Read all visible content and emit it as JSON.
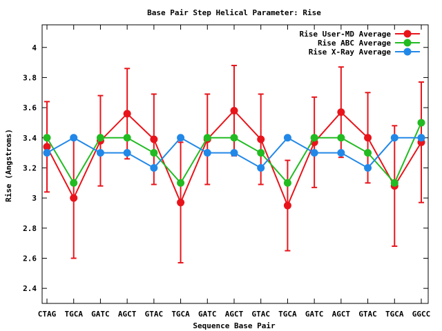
{
  "chart_data": {
    "type": "line",
    "title": "Base Pair Step Helical Parameter: Rise",
    "xlabel": "Sequence Base Pair",
    "ylabel": "Rise (Angstroms)",
    "ylim": [
      2.3,
      4.15
    ],
    "yticks": [
      2.4,
      2.6,
      2.8,
      3,
      3.2,
      3.4,
      3.6,
      3.8,
      4
    ],
    "ytick_labels": [
      "2.4",
      "2.6",
      "2.8",
      "3",
      "3.2",
      "3.4",
      "3.6",
      "3.8",
      "4"
    ],
    "categories": [
      "CTAG",
      "TGCA",
      "GATC",
      "AGCT",
      "GTAC",
      "TGCA",
      "GATC",
      "AGCT",
      "GTAC",
      "TGCA",
      "GATC",
      "AGCT",
      "GTAC",
      "TGCA",
      "GGCC"
    ],
    "legend_position": "top-right",
    "series": [
      {
        "name": "Rise User-MD Average",
        "color": "#e8141b",
        "values": [
          3.34,
          3.0,
          3.38,
          3.56,
          3.39,
          2.97,
          3.39,
          3.58,
          3.39,
          2.95,
          3.37,
          3.57,
          3.4,
          3.08,
          3.37
        ],
        "error_low": [
          3.04,
          2.6,
          3.08,
          3.26,
          3.09,
          2.57,
          3.09,
          3.28,
          3.09,
          2.65,
          3.07,
          3.27,
          3.1,
          2.68,
          2.97
        ],
        "error_high": [
          3.64,
          3.4,
          3.68,
          3.86,
          3.69,
          3.37,
          3.69,
          3.88,
          3.69,
          3.25,
          3.67,
          3.87,
          3.7,
          3.48,
          3.77
        ]
      },
      {
        "name": "Rise ABC Average",
        "color": "#22bb22",
        "values": [
          3.4,
          3.1,
          3.4,
          3.4,
          3.3,
          3.1,
          3.4,
          3.4,
          3.3,
          3.1,
          3.4,
          3.4,
          3.3,
          3.1,
          3.5
        ]
      },
      {
        "name": "Rise X-Ray Average",
        "color": "#2288e8",
        "values": [
          3.3,
          3.4,
          3.3,
          3.3,
          3.2,
          3.4,
          3.3,
          3.3,
          3.2,
          3.4,
          3.3,
          3.3,
          3.2,
          3.4,
          3.4
        ]
      }
    ]
  }
}
